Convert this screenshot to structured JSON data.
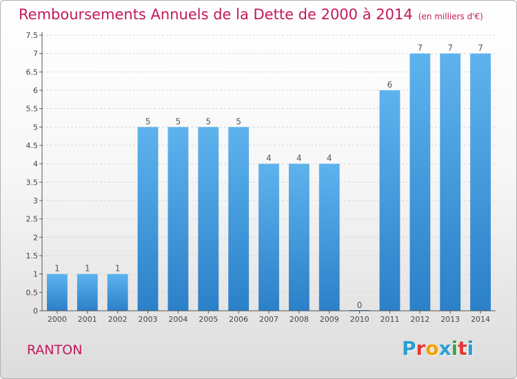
{
  "header": {
    "title": "Remboursements Annuels de la Dette de 2000 à 2014",
    "unit": "(en milliers d'€)"
  },
  "footer": {
    "commune": "RANTON",
    "logo_letters": [
      "P",
      "r",
      "o",
      "x",
      "i",
      "t",
      "i"
    ],
    "logo_colors": [
      "#2a9fd6",
      "#e53935",
      "#f4a300",
      "#2a9fd6",
      "#43a047",
      "#e53935",
      "#2a9fd6"
    ]
  },
  "chart_data": {
    "type": "bar",
    "title": "Remboursements Annuels de la Dette de 2000 à 2014",
    "xlabel": "",
    "ylabel": "",
    "ylim": [
      0,
      7.5
    ],
    "yticks": [
      "0",
      "0.5",
      "1",
      "1.5",
      "2",
      "2.5",
      "3",
      "3.5",
      "4",
      "4.5",
      "5",
      "5.5",
      "6",
      "6.5",
      "7",
      "7.5"
    ],
    "categories": [
      "2000",
      "2001",
      "2002",
      "2003",
      "2004",
      "2005",
      "2006",
      "2007",
      "2008",
      "2009",
      "2010",
      "2011",
      "2012",
      "2013",
      "2014"
    ],
    "values": [
      1,
      1,
      1,
      5,
      5,
      5,
      5,
      4,
      4,
      4,
      0,
      6,
      7,
      7,
      7
    ],
    "labels": [
      "1",
      "1",
      "1",
      "5",
      "5",
      "5",
      "5",
      "4",
      "4",
      "4",
      "0",
      "6",
      "7",
      "7",
      "7"
    ],
    "grid": true,
    "bar_color": "#4a9fe0",
    "label_color": "#555555"
  }
}
